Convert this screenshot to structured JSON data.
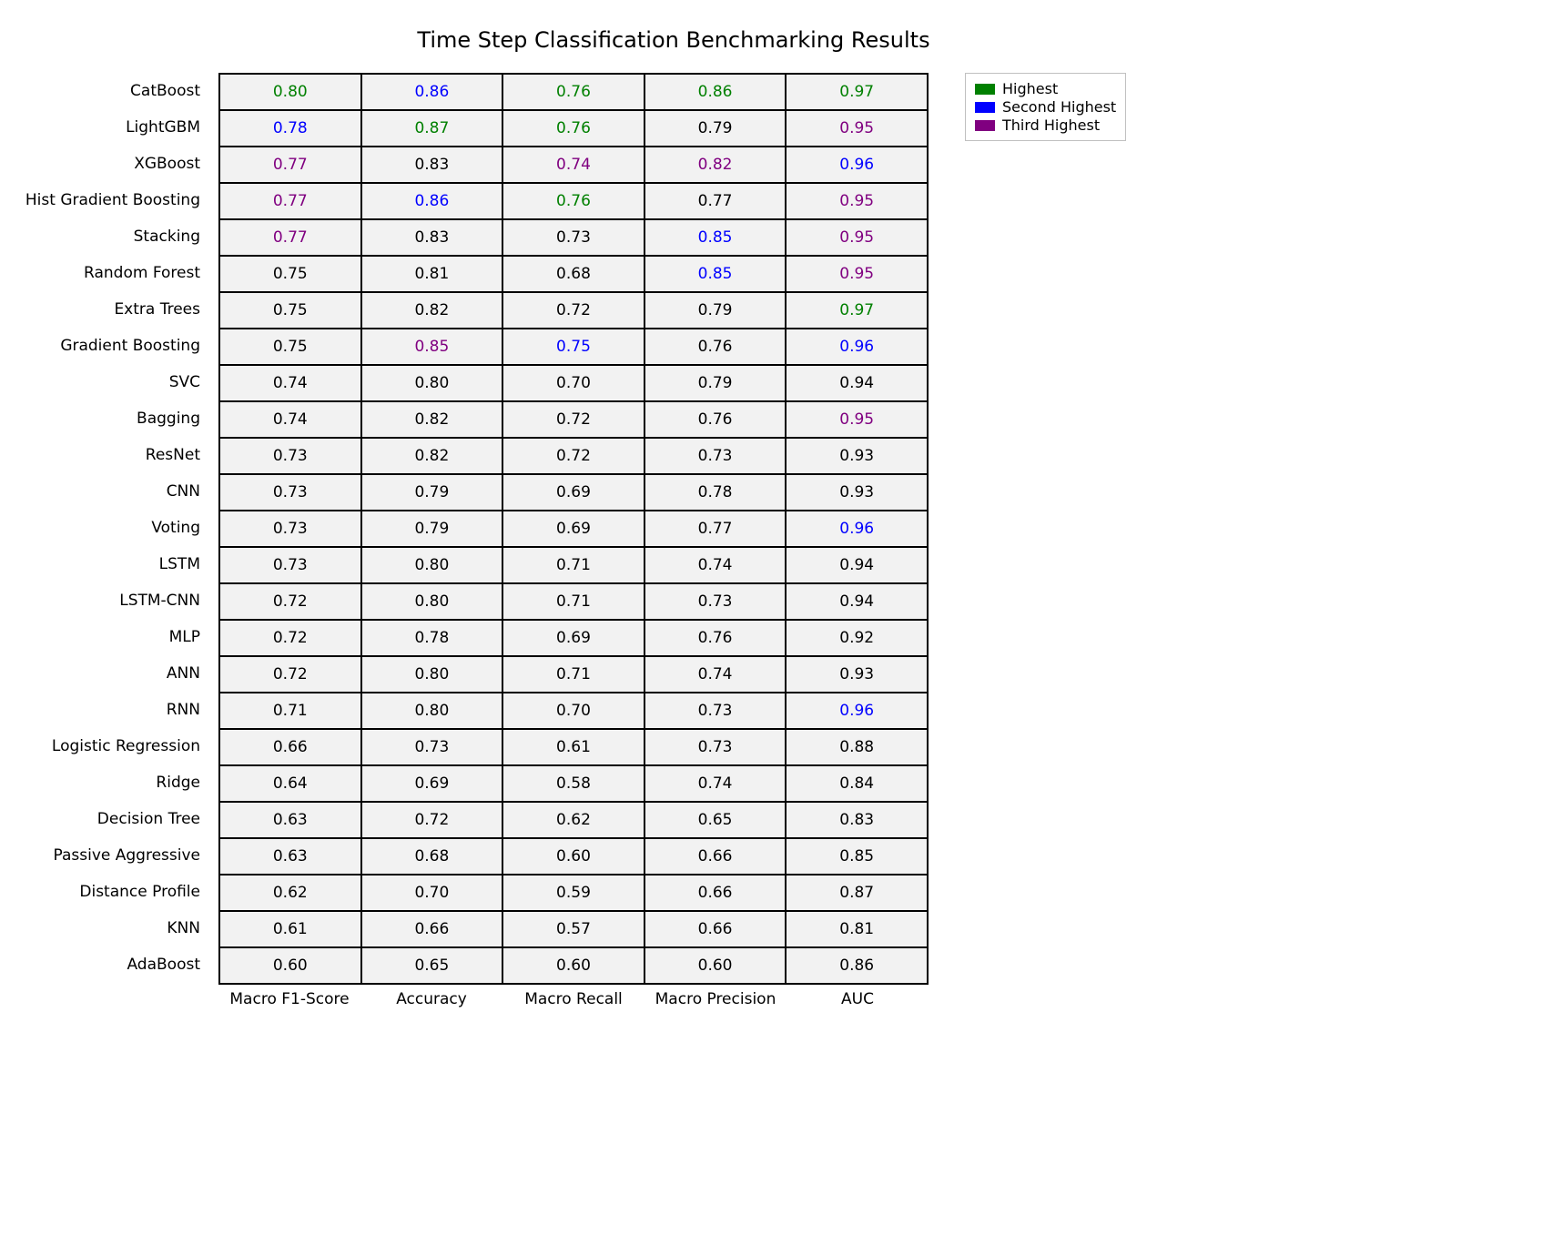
{
  "title": "Time Step Classification Benchmarking Results",
  "title_fontsize": 24,
  "cell_fontsize": 17,
  "label_fontsize": 17,
  "background_color": "#ffffff",
  "cell_background": "#f2f2f2",
  "cell_border_color": "#000000",
  "cell_border_width": 2,
  "default_text_color": "#000000",
  "legend": {
    "items": [
      {
        "label": "Highest",
        "color": "#008000"
      },
      {
        "label": "Second Highest",
        "color": "#0000ff"
      },
      {
        "label": "Third Highest",
        "color": "#800080"
      }
    ],
    "border_color": "#c0c0c0"
  },
  "columns": [
    "Macro F1-Score",
    "Accuracy",
    "Macro Recall",
    "Macro Precision",
    "AUC"
  ],
  "rows": [
    "CatBoost",
    "LightGBM",
    "XGBoost",
    "Hist Gradient Boosting",
    "Stacking",
    "Random Forest",
    "Extra Trees",
    "Gradient Boosting",
    "SVC",
    "Bagging",
    "ResNet",
    "CNN",
    "Voting",
    "LSTM",
    "LSTM-CNN",
    "MLP",
    "ANN",
    "RNN",
    "Logistic Regression",
    "Ridge",
    "Decision Tree",
    "Passive Aggressive",
    "Distance Profile",
    "KNN",
    "AdaBoost"
  ],
  "values": [
    [
      "0.80",
      "0.86",
      "0.76",
      "0.86",
      "0.97"
    ],
    [
      "0.78",
      "0.87",
      "0.76",
      "0.79",
      "0.95"
    ],
    [
      "0.77",
      "0.83",
      "0.74",
      "0.82",
      "0.96"
    ],
    [
      "0.77",
      "0.86",
      "0.76",
      "0.77",
      "0.95"
    ],
    [
      "0.77",
      "0.83",
      "0.73",
      "0.85",
      "0.95"
    ],
    [
      "0.75",
      "0.81",
      "0.68",
      "0.85",
      "0.95"
    ],
    [
      "0.75",
      "0.82",
      "0.72",
      "0.79",
      "0.97"
    ],
    [
      "0.75",
      "0.85",
      "0.75",
      "0.76",
      "0.96"
    ],
    [
      "0.74",
      "0.80",
      "0.70",
      "0.79",
      "0.94"
    ],
    [
      "0.74",
      "0.82",
      "0.72",
      "0.76",
      "0.95"
    ],
    [
      "0.73",
      "0.82",
      "0.72",
      "0.73",
      "0.93"
    ],
    [
      "0.73",
      "0.79",
      "0.69",
      "0.78",
      "0.93"
    ],
    [
      "0.73",
      "0.79",
      "0.69",
      "0.77",
      "0.96"
    ],
    [
      "0.73",
      "0.80",
      "0.71",
      "0.74",
      "0.94"
    ],
    [
      "0.72",
      "0.80",
      "0.71",
      "0.73",
      "0.94"
    ],
    [
      "0.72",
      "0.78",
      "0.69",
      "0.76",
      "0.92"
    ],
    [
      "0.72",
      "0.80",
      "0.71",
      "0.74",
      "0.93"
    ],
    [
      "0.71",
      "0.80",
      "0.70",
      "0.73",
      "0.96"
    ],
    [
      "0.66",
      "0.73",
      "0.61",
      "0.73",
      "0.88"
    ],
    [
      "0.64",
      "0.69",
      "0.58",
      "0.74",
      "0.84"
    ],
    [
      "0.63",
      "0.72",
      "0.62",
      "0.65",
      "0.83"
    ],
    [
      "0.63",
      "0.68",
      "0.60",
      "0.66",
      "0.85"
    ],
    [
      "0.62",
      "0.70",
      "0.59",
      "0.66",
      "0.87"
    ],
    [
      "0.61",
      "0.66",
      "0.57",
      "0.66",
      "0.81"
    ],
    [
      "0.60",
      "0.65",
      "0.60",
      "0.60",
      "0.86"
    ]
  ],
  "colors": [
    [
      "#008000",
      "#0000ff",
      "#008000",
      "#008000",
      "#008000"
    ],
    [
      "#0000ff",
      "#008000",
      "#008000",
      "#000000",
      "#800080"
    ],
    [
      "#800080",
      "#000000",
      "#800080",
      "#800080",
      "#0000ff"
    ],
    [
      "#800080",
      "#0000ff",
      "#008000",
      "#000000",
      "#800080"
    ],
    [
      "#800080",
      "#000000",
      "#000000",
      "#0000ff",
      "#800080"
    ],
    [
      "#000000",
      "#000000",
      "#000000",
      "#0000ff",
      "#800080"
    ],
    [
      "#000000",
      "#000000",
      "#000000",
      "#000000",
      "#008000"
    ],
    [
      "#000000",
      "#800080",
      "#0000ff",
      "#000000",
      "#0000ff"
    ],
    [
      "#000000",
      "#000000",
      "#000000",
      "#000000",
      "#000000"
    ],
    [
      "#000000",
      "#000000",
      "#000000",
      "#000000",
      "#800080"
    ],
    [
      "#000000",
      "#000000",
      "#000000",
      "#000000",
      "#000000"
    ],
    [
      "#000000",
      "#000000",
      "#000000",
      "#000000",
      "#000000"
    ],
    [
      "#000000",
      "#000000",
      "#000000",
      "#000000",
      "#0000ff"
    ],
    [
      "#000000",
      "#000000",
      "#000000",
      "#000000",
      "#000000"
    ],
    [
      "#000000",
      "#000000",
      "#000000",
      "#000000",
      "#000000"
    ],
    [
      "#000000",
      "#000000",
      "#000000",
      "#000000",
      "#000000"
    ],
    [
      "#000000",
      "#000000",
      "#000000",
      "#000000",
      "#000000"
    ],
    [
      "#000000",
      "#000000",
      "#000000",
      "#000000",
      "#0000ff"
    ],
    [
      "#000000",
      "#000000",
      "#000000",
      "#000000",
      "#000000"
    ],
    [
      "#000000",
      "#000000",
      "#000000",
      "#000000",
      "#000000"
    ],
    [
      "#000000",
      "#000000",
      "#000000",
      "#000000",
      "#000000"
    ],
    [
      "#000000",
      "#000000",
      "#000000",
      "#000000",
      "#000000"
    ],
    [
      "#000000",
      "#000000",
      "#000000",
      "#000000",
      "#000000"
    ],
    [
      "#000000",
      "#000000",
      "#000000",
      "#000000",
      "#000000"
    ],
    [
      "#000000",
      "#000000",
      "#000000",
      "#000000",
      "#000000"
    ]
  ]
}
